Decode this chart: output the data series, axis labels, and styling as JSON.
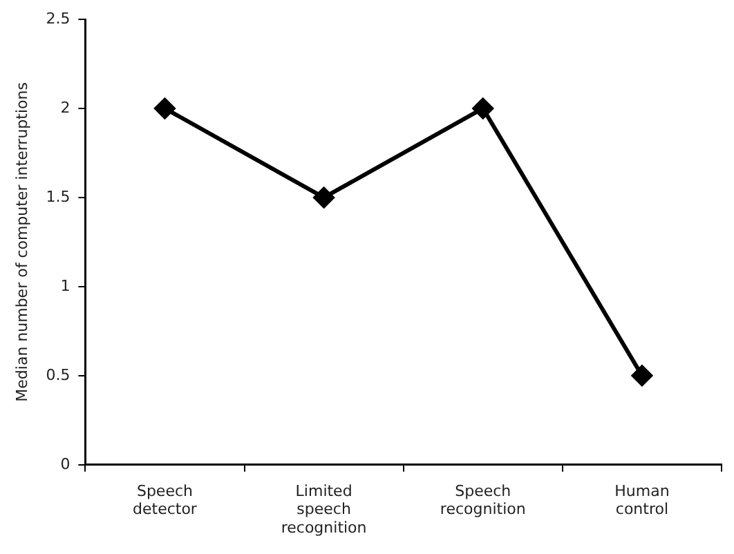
{
  "chart_data": {
    "type": "line",
    "ylabel": "Median number of computer interruptions",
    "categories": [
      "Speech detector",
      "Limited speech recognition",
      "Speech recognition",
      "Human control"
    ],
    "values": [
      2,
      1.5,
      2,
      0.5
    ],
    "color": "#000000",
    "marker": "diamond",
    "line_style": "solid",
    "ylim": [
      0,
      2.5
    ],
    "yticks": [
      0,
      0.5,
      1,
      1.5,
      2,
      2.5
    ],
    "grid": false,
    "legend": false
  }
}
